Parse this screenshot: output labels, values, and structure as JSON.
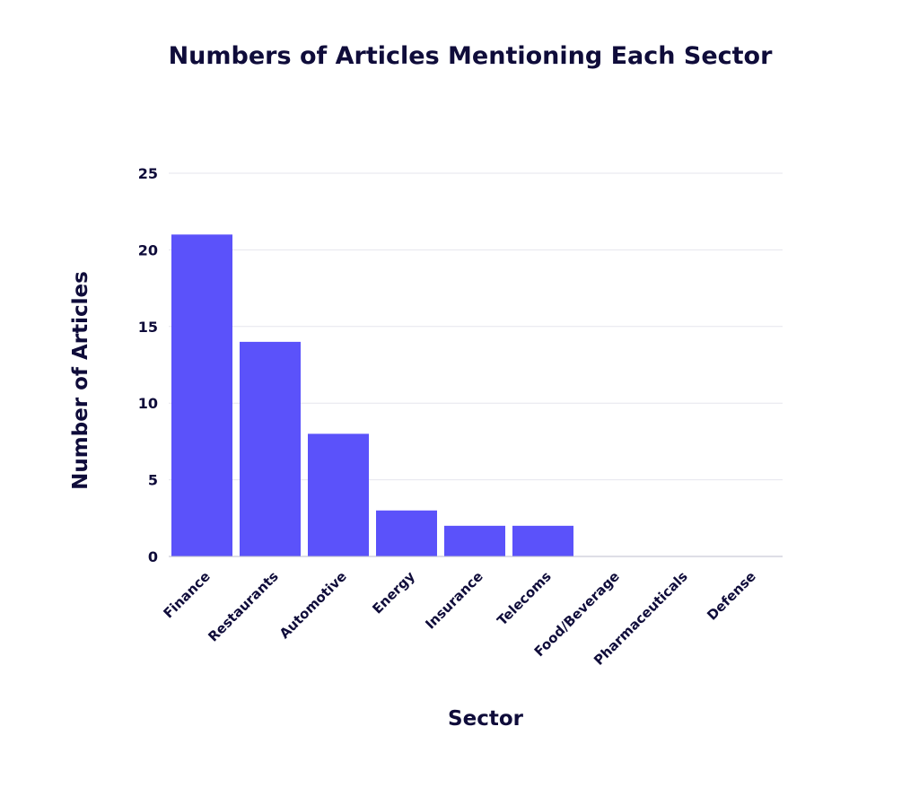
{
  "chart_data": {
    "type": "bar",
    "title": "Numbers of Articles Mentioning Each Sector",
    "xlabel": "Sector",
    "ylabel": "Number of Articles",
    "categories": [
      "Finance",
      "Restaurants",
      "Automotive",
      "Energy",
      "Insurance",
      "Telecoms",
      "Food/Beverage",
      "Pharmaceuticals",
      "Defense"
    ],
    "values": [
      21,
      14,
      8,
      3,
      2,
      2,
      0,
      0,
      0
    ],
    "ylim": [
      0,
      25
    ],
    "yticks": [
      0,
      5,
      10,
      15,
      20,
      25
    ],
    "grid": true,
    "bar_color": "#5b52fa",
    "text_color": "#0f0c3a"
  }
}
